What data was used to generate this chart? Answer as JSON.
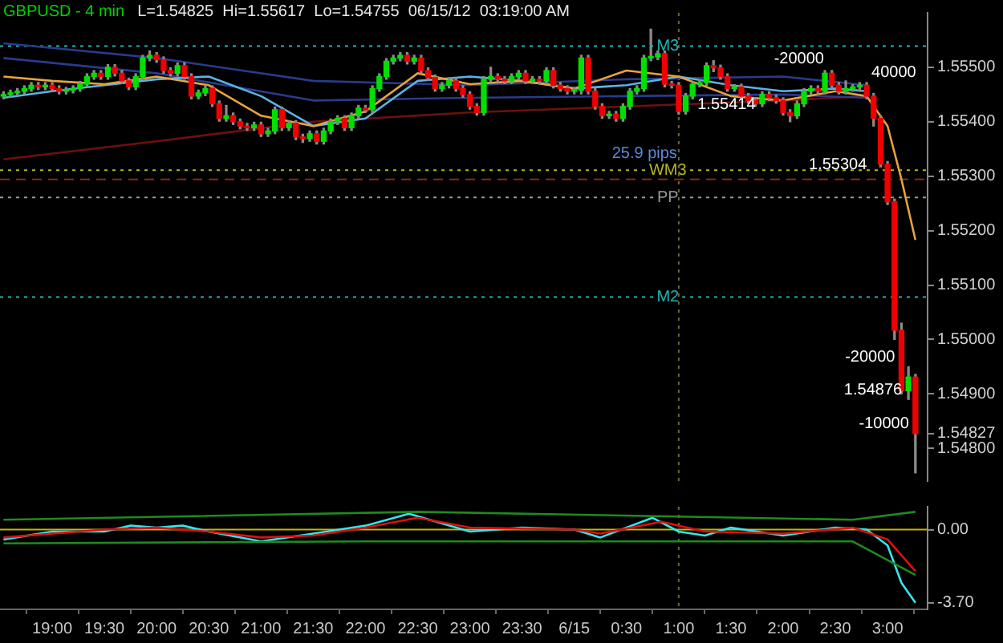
{
  "chart_data": [
    {
      "type": "candlestick",
      "title": "GBPUSD - 4 min",
      "subtitle": "L=1.54825  Hi=1.55617  Lo=1.54755  06/15/12  03:19:00 AM",
      "x": [
        "--06-14T18:32",
        "--06-14T18:36",
        "--06-14T18:40",
        "--06-14T18:44",
        "--06-14T18:48",
        "--06-14T18:52",
        "--06-14T18:56",
        "--06-14T19:00",
        "--06-14T19:04",
        "--06-14T19:08",
        "--06-14T19:12",
        "--06-14T19:16",
        "--06-14T19:20",
        "--06-14T19:24",
        "--06-14T19:28",
        "--06-14T19:32",
        "--06-14T19:36",
        "--06-14T19:40",
        "--06-14T19:44",
        "--06-14T19:48",
        "--06-14T19:52",
        "--06-14T19:56",
        "--06-14T20:00",
        "--06-14T20:04",
        "--06-14T20:08",
        "--06-14T20:12",
        "--06-14T20:16",
        "--06-14T20:20",
        "--06-14T20:24",
        "--06-14T20:28",
        "--06-14T20:32",
        "--06-14T20:36",
        "--06-14T20:40",
        "--06-14T20:44",
        "--06-14T20:48",
        "--06-14T20:52",
        "--06-14T20:56",
        "--06-14T21:00",
        "--06-14T21:04",
        "--06-14T21:08",
        "--06-14T21:12",
        "--06-14T21:16",
        "--06-14T21:20",
        "--06-14T21:24",
        "--06-14T21:28",
        "--06-14T21:32",
        "--06-14T21:36",
        "--06-14T21:40",
        "--06-14T21:44",
        "--06-14T21:48",
        "--06-14T21:52",
        "--06-14T21:56",
        "--06-14T22:00",
        "--06-14T22:04",
        "--06-14T22:08",
        "--06-14T22:12",
        "--06-14T22:16",
        "--06-14T22:20",
        "--06-14T22:24",
        "--06-14T22:28",
        "--06-14T22:32",
        "--06-14T22:36",
        "--06-14T22:40",
        "--06-14T22:44",
        "--06-14T22:48",
        "--06-14T22:52",
        "--06-14T22:56",
        "--06-14T23:00",
        "--06-14T23:04",
        "--06-14T23:08",
        "--06-14T23:12",
        "--06-14T23:16",
        "--06-14T23:20",
        "--06-14T23:24",
        "--06-14T23:28",
        "--06-14T23:32",
        "--06-14T23:36",
        "--06-14T23:40",
        "--06-14T23:44",
        "--06-14T23:48",
        "--06-14T23:52",
        "--06-14T23:56",
        "--06-15T00:00",
        "--06-15T00:04",
        "--06-15T00:08",
        "--06-15T00:12",
        "--06-15T00:16",
        "--06-15T00:20",
        "--06-15T00:24",
        "--06-15T00:28",
        "--06-15T00:32",
        "--06-15T00:36",
        "--06-15T00:40",
        "--06-15T00:44",
        "--06-15T00:48",
        "--06-15T00:52",
        "--06-15T00:56",
        "--06-15T01:00",
        "--06-15T01:04",
        "--06-15T01:08",
        "--06-15T01:12",
        "--06-15T01:16",
        "--06-15T01:20",
        "--06-15T01:24",
        "--06-15T01:28",
        "--06-15T01:32",
        "--06-15T01:36",
        "--06-15T01:40",
        "--06-15T01:44",
        "--06-15T01:48",
        "--06-15T01:52",
        "--06-15T01:56",
        "--06-15T02:00",
        "--06-15T02:04",
        "--06-15T02:08",
        "--06-15T02:12",
        "--06-15T02:16",
        "--06-15T02:20",
        "--06-15T02:24",
        "--06-15T02:28",
        "--06-15T02:32",
        "--06-15T02:36",
        "--06-15T02:40",
        "--06-15T02:44",
        "--06-15T02:48",
        "--06-15T02:52",
        "--06-15T02:56",
        "--06-15T03:00",
        "--06-15T03:04",
        "--06-15T03:08",
        "--06-15T03:12",
        "--06-15T03:16"
      ],
      "ohlc": [
        [
          1.55447,
          1.55455,
          1.55442,
          1.5545
        ],
        [
          1.5545,
          1.55458,
          1.55445,
          1.55453
        ],
        [
          1.55453,
          1.55461,
          1.55448,
          1.55456
        ],
        [
          1.55456,
          1.55466,
          1.55451,
          1.55461
        ],
        [
          1.55461,
          1.55472,
          1.55456,
          1.55467
        ],
        [
          1.55467,
          1.55472,
          1.55459,
          1.55464
        ],
        [
          1.55464,
          1.55472,
          1.55459,
          1.55467
        ],
        [
          1.55467,
          1.55472,
          1.55456,
          1.55461
        ],
        [
          1.55461,
          1.55466,
          1.55451,
          1.55456
        ],
        [
          1.55456,
          1.55463,
          1.55451,
          1.55458
        ],
        [
          1.55458,
          1.55466,
          1.55453,
          1.55461
        ],
        [
          1.55461,
          1.55474,
          1.55456,
          1.55469
        ],
        [
          1.55469,
          1.55488,
          1.55464,
          1.55483
        ],
        [
          1.55483,
          1.55494,
          1.55478,
          1.55489
        ],
        [
          1.55489,
          1.55494,
          1.55478,
          1.55483
        ],
        [
          1.55483,
          1.55505,
          1.55478,
          1.555
        ],
        [
          1.555,
          1.55505,
          1.55484,
          1.55489
        ],
        [
          1.55489,
          1.55494,
          1.5547,
          1.55475
        ],
        [
          1.55475,
          1.5548,
          1.55459,
          1.55464
        ],
        [
          1.55464,
          1.55488,
          1.55459,
          1.55483
        ],
        [
          1.55483,
          1.55522,
          1.55478,
          1.55517
        ],
        [
          1.55517,
          1.5553,
          1.55512,
          1.55522
        ],
        [
          1.55522,
          1.55527,
          1.55509,
          1.55514
        ],
        [
          1.55514,
          1.55519,
          1.55489,
          1.55494
        ],
        [
          1.55494,
          1.55499,
          1.55484,
          1.55489
        ],
        [
          1.55489,
          1.55508,
          1.55484,
          1.55503
        ],
        [
          1.55503,
          1.55508,
          1.55478,
          1.55483
        ],
        [
          1.55483,
          1.55488,
          1.55442,
          1.55447
        ],
        [
          1.55447,
          1.55458,
          1.55442,
          1.55453
        ],
        [
          1.55453,
          1.55466,
          1.55448,
          1.55461
        ],
        [
          1.55461,
          1.55466,
          1.55428,
          1.55433
        ],
        [
          1.55433,
          1.55438,
          1.55401,
          1.55406
        ],
        [
          1.55406,
          1.5543,
          1.55401,
          1.55411
        ],
        [
          1.55411,
          1.55416,
          1.55395,
          1.554
        ],
        [
          1.554,
          1.55405,
          1.55387,
          1.55392
        ],
        [
          1.55392,
          1.55397,
          1.55384,
          1.55389
        ],
        [
          1.55389,
          1.55399,
          1.55384,
          1.55394
        ],
        [
          1.55394,
          1.55399,
          1.55373,
          1.55378
        ],
        [
          1.55378,
          1.55388,
          1.55373,
          1.55383
        ],
        [
          1.55383,
          1.55427,
          1.55378,
          1.55422
        ],
        [
          1.55422,
          1.55427,
          1.55384,
          1.55389
        ],
        [
          1.55389,
          1.55402,
          1.55384,
          1.55397
        ],
        [
          1.55397,
          1.55402,
          1.55367,
          1.55372
        ],
        [
          1.55372,
          1.55377,
          1.55362,
          1.55369
        ],
        [
          1.55369,
          1.55383,
          1.55364,
          1.55378
        ],
        [
          1.55378,
          1.55383,
          1.55359,
          1.55364
        ],
        [
          1.55364,
          1.55388,
          1.55359,
          1.55383
        ],
        [
          1.55383,
          1.55405,
          1.55378,
          1.554
        ],
        [
          1.554,
          1.55411,
          1.55395,
          1.55406
        ],
        [
          1.55406,
          1.55411,
          1.55384,
          1.55389
        ],
        [
          1.55389,
          1.55416,
          1.55384,
          1.55411
        ],
        [
          1.55411,
          1.5543,
          1.55406,
          1.55425
        ],
        [
          1.55425,
          1.5543,
          1.55417,
          1.55422
        ],
        [
          1.55422,
          1.55466,
          1.55417,
          1.55461
        ],
        [
          1.55461,
          1.55488,
          1.55456,
          1.55483
        ],
        [
          1.55483,
          1.55516,
          1.55478,
          1.55511
        ],
        [
          1.55511,
          1.55522,
          1.55506,
          1.55517
        ],
        [
          1.55517,
          1.55527,
          1.55512,
          1.55522
        ],
        [
          1.55522,
          1.55527,
          1.55506,
          1.55511
        ],
        [
          1.55511,
          1.55522,
          1.55506,
          1.55517
        ],
        [
          1.55517,
          1.55522,
          1.55489,
          1.55494
        ],
        [
          1.55494,
          1.55499,
          1.55476,
          1.55481
        ],
        [
          1.55481,
          1.55486,
          1.55456,
          1.55461
        ],
        [
          1.55461,
          1.55472,
          1.55456,
          1.55467
        ],
        [
          1.55467,
          1.5548,
          1.55462,
          1.55475
        ],
        [
          1.55475,
          1.5548,
          1.55456,
          1.55461
        ],
        [
          1.55461,
          1.55466,
          1.55445,
          1.5545
        ],
        [
          1.5545,
          1.55455,
          1.55423,
          1.55428
        ],
        [
          1.55428,
          1.55433,
          1.55412,
          1.55417
        ],
        [
          1.55417,
          1.55483,
          1.55412,
          1.55478
        ],
        [
          1.55478,
          1.555,
          1.55473,
          1.55483
        ],
        [
          1.55483,
          1.55488,
          1.55473,
          1.55478
        ],
        [
          1.55478,
          1.55483,
          1.5547,
          1.55475
        ],
        [
          1.55475,
          1.55488,
          1.5547,
          1.55483
        ],
        [
          1.55483,
          1.55494,
          1.55478,
          1.55489
        ],
        [
          1.55489,
          1.55494,
          1.5547,
          1.55475
        ],
        [
          1.55475,
          1.55483,
          1.5547,
          1.55478
        ],
        [
          1.55478,
          1.55483,
          1.5547,
          1.55475
        ],
        [
          1.55475,
          1.55499,
          1.5547,
          1.55494
        ],
        [
          1.55494,
          1.55499,
          1.55462,
          1.55467
        ],
        [
          1.55467,
          1.55472,
          1.55456,
          1.55461
        ],
        [
          1.55461,
          1.55466,
          1.55451,
          1.55456
        ],
        [
          1.55456,
          1.55463,
          1.55451,
          1.55458
        ],
        [
          1.55458,
          1.55522,
          1.55451,
          1.55517
        ],
        [
          1.55517,
          1.55522,
          1.55451,
          1.55456
        ],
        [
          1.55456,
          1.55461,
          1.55423,
          1.55428
        ],
        [
          1.55428,
          1.55433,
          1.55406,
          1.55411
        ],
        [
          1.55411,
          1.55419,
          1.55406,
          1.55414
        ],
        [
          1.55414,
          1.55419,
          1.55401,
          1.55406
        ],
        [
          1.55406,
          1.55433,
          1.55401,
          1.55428
        ],
        [
          1.55428,
          1.55461,
          1.55423,
          1.55456
        ],
        [
          1.55456,
          1.55466,
          1.55451,
          1.55461
        ],
        [
          1.55461,
          1.55522,
          1.55456,
          1.55517
        ],
        [
          1.55517,
          1.5557,
          1.55512,
          1.55519
        ],
        [
          1.55519,
          1.5553,
          1.55514,
          1.55525
        ],
        [
          1.55525,
          1.5553,
          1.55464,
          1.55469
        ],
        [
          1.55469,
          1.55474,
          1.55462,
          1.55467
        ],
        [
          1.55467,
          1.55472,
          1.55414,
          1.55419
        ],
        [
          1.55419,
          1.55452,
          1.55414,
          1.55447
        ],
        [
          1.55447,
          1.55474,
          1.55442,
          1.55469
        ],
        [
          1.55469,
          1.55477,
          1.55464,
          1.55472
        ],
        [
          1.55472,
          1.55508,
          1.55467,
          1.55503
        ],
        [
          1.55503,
          1.55512,
          1.55492,
          1.55499
        ],
        [
          1.55499,
          1.55504,
          1.55478,
          1.55483
        ],
        [
          1.55483,
          1.55488,
          1.55456,
          1.55461
        ],
        [
          1.55461,
          1.55468,
          1.55456,
          1.55464
        ],
        [
          1.55464,
          1.55469,
          1.55442,
          1.55447
        ],
        [
          1.55447,
          1.55452,
          1.55434,
          1.55439
        ],
        [
          1.55439,
          1.55444,
          1.55428,
          1.55433
        ],
        [
          1.55433,
          1.55455,
          1.55428,
          1.5545
        ],
        [
          1.5545,
          1.55455,
          1.55439,
          1.55444
        ],
        [
          1.55444,
          1.55449,
          1.55434,
          1.55439
        ],
        [
          1.55439,
          1.55444,
          1.55412,
          1.55417
        ],
        [
          1.55417,
          1.55422,
          1.554,
          1.55411
        ],
        [
          1.55411,
          1.55438,
          1.55406,
          1.55433
        ],
        [
          1.55433,
          1.55461,
          1.55428,
          1.55456
        ],
        [
          1.55456,
          1.55466,
          1.55451,
          1.55461
        ],
        [
          1.55461,
          1.55466,
          1.55451,
          1.55456
        ],
        [
          1.55456,
          1.55494,
          1.55451,
          1.55489
        ],
        [
          1.55489,
          1.55494,
          1.55462,
          1.55467
        ],
        [
          1.55467,
          1.55472,
          1.55451,
          1.55456
        ],
        [
          1.55456,
          1.55475,
          1.55451,
          1.55461
        ],
        [
          1.55461,
          1.55468,
          1.55456,
          1.55464
        ],
        [
          1.55464,
          1.55472,
          1.55456,
          1.55467
        ],
        [
          1.55467,
          1.55472,
          1.55442,
          1.55447
        ],
        [
          1.55447,
          1.55452,
          1.55392,
          1.55406
        ],
        [
          1.55406,
          1.55411,
          1.55317,
          1.55322
        ],
        [
          1.55322,
          1.55327,
          1.55248,
          1.55253
        ],
        [
          1.55253,
          1.55258,
          1.55,
          1.55017
        ],
        [
          1.55017,
          1.5503,
          1.549,
          1.54906
        ],
        [
          1.54906,
          1.5495,
          1.5489,
          1.54931
        ],
        [
          1.54931,
          1.54936,
          1.54755,
          1.54827
        ]
      ],
      "series": [
        {
          "type": "line",
          "color": "#e8a33c",
          "x": [
            "--06-14T18:32",
            "--06-14T19:00",
            "--06-14T19:30",
            "--06-14T20:00",
            "--06-14T20:30",
            "--06-14T21:00",
            "--06-14T21:30",
            "--06-14T22:00",
            "--06-14T22:30",
            "--06-14T23:00",
            "--06-14T23:30",
            "--06-15T00:00",
            "--06-15T00:30",
            "--06-15T01:00",
            "--06-15T01:30",
            "--06-15T02:00",
            "--06-15T02:30",
            "--06-15T02:48",
            "--06-15T03:00",
            "--06-15T03:08",
            "--06-15T03:16"
          ],
          "values": [
            1.55483,
            1.55475,
            1.55469,
            1.55483,
            1.55467,
            1.55411,
            1.55392,
            1.55419,
            1.55489,
            1.55469,
            1.55475,
            1.55461,
            1.55494,
            1.55483,
            1.55447,
            1.55439,
            1.55456,
            1.55447,
            1.55392,
            1.55294,
            1.55183
          ]
        },
        {
          "type": "line",
          "color": "#5ab4e6",
          "x": [
            "--06-14T18:32",
            "--06-14T19:00",
            "--06-14T19:30",
            "--06-14T20:00",
            "--06-14T20:30",
            "--06-14T21:00",
            "--06-14T21:30",
            "--06-14T22:00",
            "--06-14T22:30",
            "--06-14T23:00",
            "--06-14T23:30",
            "--06-15T00:00",
            "--06-15T00:30",
            "--06-15T01:00",
            "--06-15T01:30",
            "--06-15T02:00",
            "--06-15T02:30",
            "--06-15T02:48"
          ],
          "values": [
            1.55444,
            1.55456,
            1.55467,
            1.55478,
            1.55483,
            1.55447,
            1.55392,
            1.55406,
            1.55475,
            1.55483,
            1.55475,
            1.55461,
            1.55467,
            1.55483,
            1.55467,
            1.55456,
            1.55461,
            1.55456
          ]
        },
        {
          "type": "line",
          "color": "#2a3a8c",
          "x": [
            "--06-14T18:32",
            "--06-14T20:00",
            "--06-14T21:30",
            "--06-14T23:00",
            "--06-15T00:30",
            "--06-15T02:00",
            "--06-15T02:48"
          ],
          "values": [
            1.55544,
            1.55517,
            1.55475,
            1.55467,
            1.55478,
            1.55483,
            1.55467
          ]
        },
        {
          "type": "line",
          "color": "#2a3a8c",
          "x": [
            "--06-14T18:32",
            "--06-14T20:00",
            "--06-14T21:30",
            "--06-14T23:00",
            "--06-15T00:30",
            "--06-15T02:00",
            "--06-15T02:48"
          ],
          "values": [
            1.55517,
            1.55489,
            1.55439,
            1.55444,
            1.55447,
            1.5545,
            1.55444
          ]
        },
        {
          "type": "line",
          "color": "#6e1010",
          "x": [
            "--06-14T18:32",
            "--06-14T20:00",
            "--06-14T21:30",
            "--06-14T23:00",
            "--06-15T00:30",
            "--06-15T02:00",
            "--06-15T02:48"
          ],
          "values": [
            1.55331,
            1.55364,
            1.554,
            1.55417,
            1.55428,
            1.55439,
            1.55447
          ]
        }
      ],
      "xlim": [
        "--06-14T18:30",
        "--06-15T03:23"
      ],
      "ylim": [
        1.5474,
        1.556
      ],
      "yticks": [
        {
          "value": 1.555,
          "label": "1.55500"
        },
        {
          "value": 1.554,
          "label": "1.55400"
        },
        {
          "value": 1.553,
          "label": "1.55300"
        },
        {
          "value": 1.552,
          "label": "1.55200"
        },
        {
          "value": 1.551,
          "label": "1.55100"
        },
        {
          "value": 1.55,
          "label": "1.55000"
        },
        {
          "value": 1.549,
          "label": "1.54900"
        },
        {
          "value": 1.54827,
          "label": "1.54827"
        },
        {
          "value": 1.548,
          "label": "1.54800"
        }
      ],
      "tick_labels": "y",
      "ref_lines": [
        {
          "axis": "y",
          "value": 1.55539,
          "label": "M3",
          "color": "#1fb5b5",
          "line_style": "dotted"
        },
        {
          "axis": "y",
          "value": 1.55311,
          "label": "WM3",
          "color": "#b5b51f",
          "line_style": "dotted"
        },
        {
          "axis": "y",
          "value": 1.55294,
          "color": "#8b2a10",
          "line_style": "dashed"
        },
        {
          "axis": "y",
          "value": 1.55261,
          "label": "PP",
          "color": "#9a9a9a",
          "line_style": "dotted"
        },
        {
          "axis": "y",
          "value": 1.55078,
          "label": "M2",
          "color": "#1fb5b5",
          "line_style": "dotted"
        },
        {
          "axis": "x",
          "value": "--06-15T01:00",
          "color": "#6b6b2a",
          "line_style": "dotted"
        }
      ],
      "annotations": [
        "25.9 pips",
        {
          "text": "1.55414",
          "x": "--06-15T01:08",
          "y": 1.55414
        },
        {
          "text": "-20000",
          "x": "--06-15T01:52",
          "y": 1.55497
        },
        {
          "text": "40000",
          "x": "--06-15T02:48",
          "y": 1.55472
        },
        {
          "text": "1.55304",
          "x": "--06-15T02:12",
          "y": 1.55304
        },
        {
          "text": "-20000",
          "x": "--06-15T03:08",
          "y": 1.5495
        },
        {
          "text": "1.54876",
          "x": "--06-15T03:12",
          "y": 1.5489
        },
        {
          "text": "-10000",
          "x": "--06-15T03:16",
          "y": 1.54827
        }
      ]
    },
    {
      "type": "line",
      "series": [
        {
          "color": "#1f8a1f",
          "x": [
            "--06-14T18:32",
            "--06-14T22:30",
            "--06-15T02:40",
            "--06-15T03:16"
          ],
          "values": [
            0.5,
            0.9,
            0.5,
            0.9
          ]
        },
        {
          "color": "#1f8a1f",
          "x": [
            "--06-14T18:32",
            "--06-14T22:00",
            "--06-15T02:40",
            "--06-15T03:16"
          ],
          "values": [
            -0.7,
            -0.6,
            -0.6,
            -2.3
          ]
        },
        {
          "color": "#e01010",
          "x": [
            "--06-14T18:32",
            "--06-14T19:30",
            "--06-14T20:00",
            "--06-14T20:30",
            "--06-14T21:00",
            "--06-14T21:30",
            "--06-14T22:00",
            "--06-14T22:30",
            "--06-14T23:00",
            "--06-15T00:00",
            "--06-15T00:15",
            "--06-15T00:50",
            "--06-15T01:15",
            "--06-15T02:00",
            "--06-15T02:40",
            "--06-15T03:00",
            "--06-15T03:16"
          ],
          "values": [
            -0.4,
            0,
            0.1,
            -0.1,
            -0.4,
            -0.3,
            0.1,
            0.6,
            0.1,
            0,
            -0.2,
            0.4,
            -0.1,
            -0.2,
            0.1,
            -0.5,
            -2.1
          ]
        },
        {
          "color": "#33e6f0",
          "x": [
            "--06-14T18:32",
            "--06-14T19:00",
            "--06-14T19:30",
            "--06-14T19:45",
            "--06-14T20:00",
            "--06-14T20:15",
            "--06-14T20:30",
            "--06-14T21:00",
            "--06-14T21:30",
            "--06-14T22:00",
            "--06-14T22:25",
            "--06-14T23:00",
            "--06-14T23:30",
            "--06-15T00:00",
            "--06-15T00:15",
            "--06-15T00:45",
            "--06-15T01:00",
            "--06-15T01:15",
            "--06-15T01:30",
            "--06-15T02:00",
            "--06-15T02:30",
            "--06-15T02:48",
            "--06-15T03:00",
            "--06-15T03:08",
            "--06-15T03:16"
          ],
          "values": [
            -0.5,
            -0.1,
            -0.1,
            0.2,
            0.1,
            0.2,
            -0.1,
            -0.6,
            -0.2,
            0.2,
            0.8,
            -0.1,
            0.1,
            0,
            -0.4,
            0.6,
            -0.1,
            -0.3,
            0.1,
            -0.3,
            0.1,
            0,
            -0.8,
            -2.7,
            -3.7
          ]
        }
      ],
      "xlim": [
        "--06-14T18:30",
        "--06-15T03:23"
      ],
      "xticks": [
        {
          "value": "--06-14T19:00",
          "label": "19:00"
        },
        {
          "value": "--06-14T19:30",
          "label": "19:30"
        },
        {
          "value": "--06-14T20:00",
          "label": "20:00"
        },
        {
          "value": "--06-14T20:30",
          "label": "20:30"
        },
        {
          "value": "--06-14T21:00",
          "label": "21:00"
        },
        {
          "value": "--06-14T21:30",
          "label": "21:30"
        },
        {
          "value": "--06-14T22:00",
          "label": "22:00"
        },
        {
          "value": "--06-14T22:30",
          "label": "22:30"
        },
        {
          "value": "--06-14T23:00",
          "label": "23:00"
        },
        {
          "value": "--06-14T23:30",
          "label": "23:30"
        },
        {
          "value": "--06-15T00:00",
          "label": "6/15"
        },
        {
          "value": "--06-15T00:30",
          "label": "0:30"
        },
        {
          "value": "--06-15T01:00",
          "label": "1:00"
        },
        {
          "value": "--06-15T01:30",
          "label": "1:30"
        },
        {
          "value": "--06-15T02:00",
          "label": "2:00"
        },
        {
          "value": "--06-15T02:30",
          "label": "2:30"
        },
        {
          "value": "--06-15T03:00",
          "label": "3:00"
        }
      ],
      "ylim": [
        -4.04,
        1.16
      ],
      "yticks": [
        {
          "value": 0,
          "label": "0.00"
        },
        {
          "value": -3.7,
          "label": "-3.70"
        }
      ],
      "ref_lines": [
        {
          "axis": "y",
          "value": 0,
          "color": "#c8b400",
          "line_style": "solid"
        },
        {
          "axis": "x",
          "value": "--06-15T01:00",
          "color": "#6b6b2a",
          "line_style": "dotted"
        }
      ]
    }
  ]
}
